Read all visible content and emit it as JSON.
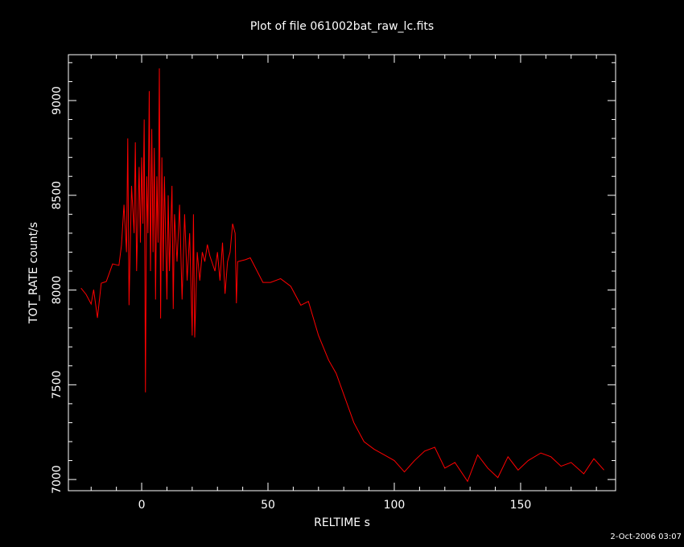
{
  "chart_data": {
    "type": "line",
    "title": "Plot of file 061002bat_raw_lc.fits",
    "xlabel": "RELTIME  s",
    "ylabel": "TOT_RATE  count/s",
    "footer": "2-Oct-2006 03:07",
    "color": "#ff0000",
    "x": [
      -24,
      -22,
      -20,
      -19,
      -17.5,
      -16,
      -14,
      -11.5,
      -9,
      -8,
      -7,
      -6,
      -5.5,
      -5,
      -4,
      -3,
      -2.5,
      -2,
      -1,
      -0.5,
      0,
      0.5,
      1,
      1.5,
      2,
      2.5,
      3,
      3.5,
      4,
      4.5,
      5,
      5.5,
      6,
      6.5,
      7,
      7.5,
      8,
      8.5,
      9,
      10,
      10.5,
      11,
      12,
      12.5,
      13,
      14,
      15,
      16,
      17,
      18,
      19,
      20,
      20.5,
      21,
      22,
      23,
      24,
      25,
      26,
      27,
      29,
      30,
      31,
      32,
      33,
      34,
      35,
      36,
      37,
      37.5,
      38,
      41,
      43,
      48,
      51,
      55,
      59,
      63,
      66,
      70,
      74,
      77,
      84,
      88,
      92,
      96,
      100,
      104,
      108,
      112,
      116,
      120,
      124,
      129,
      133,
      137,
      141,
      145,
      149,
      153,
      158,
      162,
      166,
      170,
      175,
      179,
      183
    ],
    "values": [
      8010,
      7977,
      7926,
      8002,
      7853,
      8036,
      8045,
      8138,
      8130,
      8236,
      8450,
      8200,
      8800,
      7920,
      8550,
      8300,
      8780,
      8100,
      8650,
      8250,
      8700,
      8350,
      8900,
      7460,
      8600,
      8300,
      9050,
      8100,
      8850,
      8200,
      8750,
      7950,
      8600,
      8250,
      9170,
      7850,
      8700,
      8100,
      8600,
      7950,
      8500,
      8100,
      8550,
      7900,
      8400,
      8150,
      8450,
      7950,
      8400,
      8050,
      8300,
      7760,
      8400,
      7750,
      8200,
      8050,
      8200,
      8150,
      8240,
      8180,
      8100,
      8200,
      8050,
      8250,
      7980,
      8150,
      8200,
      8350,
      8300,
      7930,
      8150,
      8160,
      8170,
      8040,
      8040,
      8060,
      8020,
      7920,
      7940,
      7760,
      7630,
      7560,
      7300,
      7200,
      7160,
      7130,
      7100,
      7040,
      7100,
      7150,
      7170,
      7060,
      7090,
      6990,
      7130,
      7060,
      7010,
      7120,
      7050,
      7100,
      7140,
      7120,
      7070,
      7090,
      7030,
      7110,
      7050
    ],
    "xlim": [
      -29,
      187.6
    ],
    "ylim": [
      6941,
      9242
    ],
    "xticks": [
      0,
      50,
      100,
      150
    ],
    "yticks": [
      7000,
      7500,
      8000,
      8500,
      9000
    ],
    "x_minor_ticks": [
      -20,
      -10,
      10,
      20,
      30,
      40,
      60,
      70,
      80,
      90,
      110,
      120,
      130,
      140,
      160,
      170,
      180
    ],
    "y_minor_ticks": [
      7100,
      7200,
      7300,
      7400,
      7600,
      7700,
      7800,
      7900,
      8100,
      8200,
      8300,
      8400,
      8600,
      8700,
      8800,
      8900,
      9100,
      9200
    ]
  }
}
